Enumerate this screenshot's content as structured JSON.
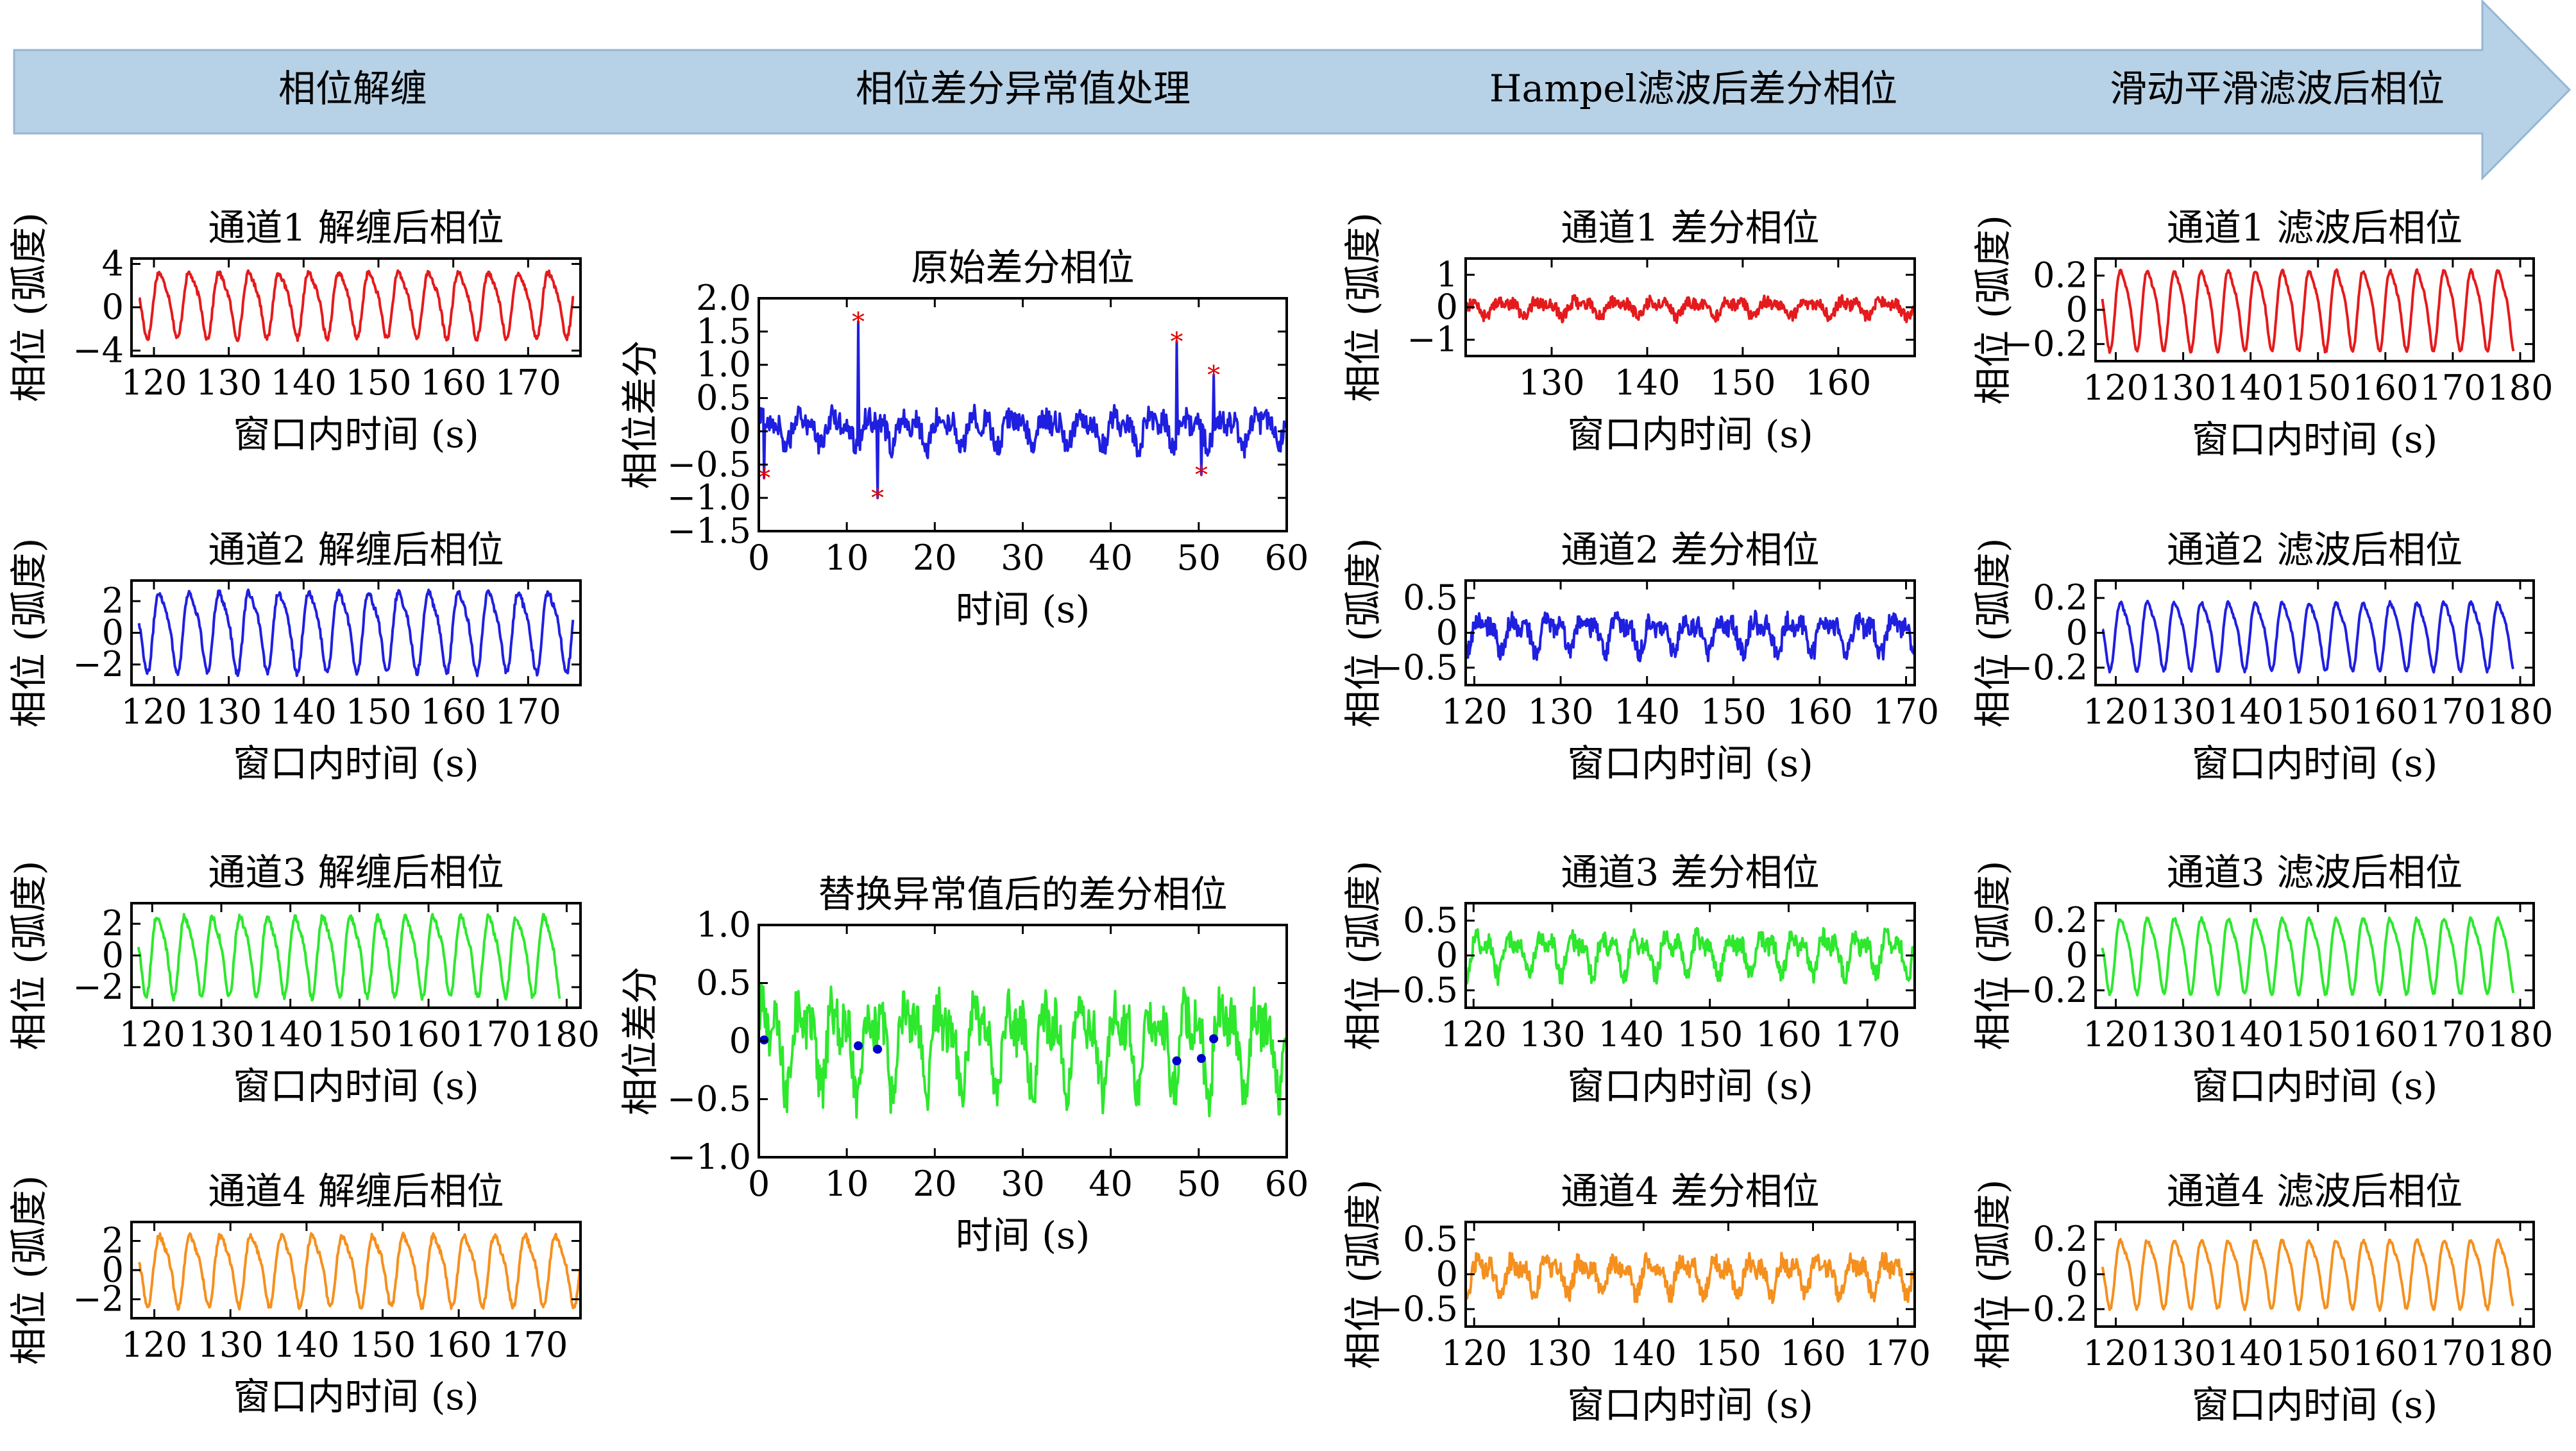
{
  "pipeline_stages": [
    "相位解缠",
    "相位差分异常值处理",
    "Hampel滤波后差分相位",
    "滑动平滑滤波后相位"
  ],
  "colors": {
    "arrow_fill": "#b7d1e6",
    "arrow_stroke": "#94b6d3",
    "red": "#e41a1c",
    "blue": "#1f1fe0",
    "green": "#2de82d",
    "orange": "#f5901e",
    "marker_red": "#e00000",
    "marker_blue": "#0000cc"
  },
  "chart_data": [
    {
      "id": "unwrap-1",
      "type": "line",
      "title": "通道1 解缠后相位",
      "xlabel": "窗口内时间 (s)",
      "ylabel": "相位 (弧度)",
      "xlim": [
        117,
        177
      ],
      "ylim": [
        -4.5,
        4.5
      ],
      "xticks": [
        120,
        130,
        140,
        150,
        160,
        170
      ],
      "yticks": [
        -4,
        0,
        4
      ],
      "color": "red",
      "signal": {
        "kind": "sine",
        "amp": 3.1,
        "period": 4.0,
        "offset": 0.5,
        "noise": 0.25,
        "start": 118,
        "end": 176
      }
    },
    {
      "id": "unwrap-2",
      "type": "line",
      "title": "通道2 解缠后相位",
      "xlabel": "窗口内时间 (s)",
      "ylabel": "相位 (弧度)",
      "xlim": [
        117,
        177
      ],
      "ylim": [
        -3.3,
        3.3
      ],
      "xticks": [
        120,
        130,
        140,
        150,
        160,
        170
      ],
      "yticks": [
        -2,
        0,
        2
      ],
      "color": "blue",
      "signal": {
        "kind": "sine",
        "amp": 2.6,
        "period": 4.0,
        "offset": 0.3,
        "noise": 0.2,
        "start": 118,
        "end": 176
      }
    },
    {
      "id": "unwrap-3",
      "type": "line",
      "title": "通道3 解缠后相位",
      "xlabel": "窗口内时间 (s)",
      "ylabel": "相位 (弧度)",
      "xlim": [
        117,
        182
      ],
      "ylim": [
        -3.3,
        3.3
      ],
      "xticks": [
        120,
        130,
        140,
        150,
        160,
        170,
        180
      ],
      "yticks": [
        -2,
        0,
        2
      ],
      "color": "green",
      "signal": {
        "kind": "sine",
        "amp": 2.6,
        "period": 4.0,
        "offset": 0.2,
        "noise": 0.2,
        "start": 118,
        "end": 179
      }
    },
    {
      "id": "unwrap-4",
      "type": "line",
      "title": "通道4 解缠后相位",
      "xlabel": "窗口内时间 (s)",
      "ylabel": "相位 (弧度)",
      "xlim": [
        117,
        176
      ],
      "ylim": [
        -3.3,
        3.3
      ],
      "xticks": [
        120,
        130,
        140,
        150,
        160,
        170
      ],
      "yticks": [
        -2,
        0,
        2
      ],
      "color": "orange",
      "signal": {
        "kind": "sine",
        "amp": 2.5,
        "period": 4.0,
        "offset": 0.2,
        "noise": 0.2,
        "start": 118,
        "end": 176
      }
    },
    {
      "id": "diff-raw",
      "type": "line",
      "title": "原始差分相位",
      "xlabel": "时间 (s)",
      "ylabel": "相位差分",
      "xlim": [
        0,
        60
      ],
      "ylim": [
        -1.5,
        2.0
      ],
      "xticks": [
        0,
        10,
        20,
        30,
        40,
        50,
        60
      ],
      "yticks": [
        -1.5,
        -1.0,
        -0.5,
        0,
        0.5,
        1.0,
        1.5,
        2.0
      ],
      "color": "blue",
      "signal": {
        "kind": "noisy",
        "amp": 0.28,
        "period": 4.0,
        "offset": 0.05,
        "noise": 0.18,
        "start": 0,
        "end": 60,
        "spikes": [
          [
            0.6,
            -0.7
          ],
          [
            11.3,
            1.65
          ],
          [
            13.5,
            -1.0
          ],
          [
            47.5,
            1.35
          ],
          [
            50.3,
            -0.65
          ],
          [
            51.7,
            0.85
          ]
        ]
      },
      "markers": {
        "color": "marker_red",
        "shape": "star",
        "points": [
          [
            0.6,
            -0.7
          ],
          [
            11.3,
            1.65
          ],
          [
            13.5,
            -1.0
          ],
          [
            47.5,
            1.35
          ],
          [
            50.3,
            -0.65
          ],
          [
            51.7,
            0.85
          ]
        ]
      }
    },
    {
      "id": "diff-replaced",
      "type": "line",
      "title": "替换异常值后的差分相位",
      "xlabel": "时间 (s)",
      "ylabel": "相位差分",
      "xlim": [
        0,
        60
      ],
      "ylim": [
        -1.0,
        1.0
      ],
      "xticks": [
        0,
        10,
        20,
        30,
        40,
        50,
        60
      ],
      "yticks": [
        -1.0,
        -0.5,
        0,
        0.5,
        1.0
      ],
      "color": "green",
      "signal": {
        "kind": "noisy",
        "amp": 0.45,
        "period": 4.0,
        "offset": 0.0,
        "noise": 0.22,
        "start": 0,
        "end": 60
      },
      "markers": {
        "color": "marker_blue",
        "shape": "dot",
        "points": [
          [
            0.6,
            0.01
          ],
          [
            11.3,
            -0.04
          ],
          [
            13.5,
            -0.07
          ],
          [
            47.5,
            -0.17
          ],
          [
            50.3,
            -0.15
          ],
          [
            51.7,
            0.02
          ]
        ]
      }
    },
    {
      "id": "hampel-1",
      "type": "line",
      "title": "通道1 差分相位",
      "xlabel": "窗口内时间 (s)",
      "ylabel": "相位 (弧度)",
      "xlim": [
        121,
        168
      ],
      "ylim": [
        -1.5,
        1.5
      ],
      "xticks": [
        130,
        140,
        150,
        160
      ],
      "yticks": [
        -1,
        0,
        1
      ],
      "color": "red",
      "signal": {
        "kind": "noisy",
        "amp": 0.3,
        "period": 4.0,
        "offset": 0.0,
        "noise": 0.18,
        "start": 121,
        "end": 168
      }
    },
    {
      "id": "hampel-2",
      "type": "line",
      "title": "通道2 差分相位",
      "xlabel": "窗口内时间 (s)",
      "ylabel": "相位 (弧度)",
      "xlim": [
        119,
        171
      ],
      "ylim": [
        -0.75,
        0.75
      ],
      "xticks": [
        120,
        130,
        140,
        150,
        160,
        170
      ],
      "yticks": [
        -0.5,
        0,
        0.5
      ],
      "color": "blue",
      "signal": {
        "kind": "noisy",
        "amp": 0.3,
        "period": 4.0,
        "offset": 0.0,
        "noise": 0.14,
        "start": 119,
        "end": 171
      }
    },
    {
      "id": "hampel-3",
      "type": "line",
      "title": "通道3 差分相位",
      "xlabel": "窗口内时间 (s)",
      "ylabel": "相位 (弧度)",
      "xlim": [
        119,
        176
      ],
      "ylim": [
        -0.75,
        0.75
      ],
      "xticks": [
        120,
        130,
        140,
        150,
        160,
        170
      ],
      "yticks": [
        -0.5,
        0,
        0.5
      ],
      "color": "green",
      "signal": {
        "kind": "noisy",
        "amp": 0.35,
        "period": 4.0,
        "offset": 0.05,
        "noise": 0.13,
        "start": 119,
        "end": 176
      }
    },
    {
      "id": "hampel-4",
      "type": "line",
      "title": "通道4 差分相位",
      "xlabel": "窗口内时间 (s)",
      "ylabel": "相位 (弧度)",
      "xlim": [
        119,
        172
      ],
      "ylim": [
        -0.75,
        0.75
      ],
      "xticks": [
        120,
        130,
        140,
        150,
        160,
        170
      ],
      "yticks": [
        -0.5,
        0,
        0.5
      ],
      "color": "orange",
      "signal": {
        "kind": "noisy",
        "amp": 0.3,
        "period": 4.0,
        "offset": 0.0,
        "noise": 0.13,
        "start": 119,
        "end": 172
      }
    },
    {
      "id": "smooth-1",
      "type": "line",
      "title": "通道1 滤波后相位",
      "xlabel": "窗口内时间 (s)",
      "ylabel": "相位 (弧度)",
      "xlim": [
        117,
        182
      ],
      "ylim": [
        -0.3,
        0.3
      ],
      "xticks": [
        120,
        130,
        140,
        150,
        160,
        170,
        180
      ],
      "yticks": [
        -0.2,
        0,
        0.2
      ],
      "color": "red",
      "signal": {
        "kind": "sine",
        "amp": 0.24,
        "period": 4.0,
        "offset": 0.02,
        "noise": 0.01,
        "start": 118,
        "end": 179
      }
    },
    {
      "id": "smooth-2",
      "type": "line",
      "title": "通道2 滤波后相位",
      "xlabel": "窗口内时间 (s)",
      "ylabel": "相位 (弧度)",
      "xlim": [
        117,
        182
      ],
      "ylim": [
        -0.3,
        0.3
      ],
      "xticks": [
        120,
        130,
        140,
        150,
        160,
        170,
        180
      ],
      "yticks": [
        -0.2,
        0,
        0.2
      ],
      "color": "blue",
      "signal": {
        "kind": "sine",
        "amp": 0.2,
        "period": 4.0,
        "offset": 0.0,
        "noise": 0.01,
        "start": 118,
        "end": 179
      }
    },
    {
      "id": "smooth-3",
      "type": "line",
      "title": "通道3 滤波后相位",
      "xlabel": "窗口内时间 (s)",
      "ylabel": "相位 (弧度)",
      "xlim": [
        117,
        182
      ],
      "ylim": [
        -0.3,
        0.3
      ],
      "xticks": [
        120,
        130,
        140,
        150,
        160,
        170,
        180
      ],
      "yticks": [
        -0.2,
        0,
        0.2
      ],
      "color": "green",
      "signal": {
        "kind": "sine",
        "amp": 0.22,
        "period": 4.0,
        "offset": 0.02,
        "noise": 0.01,
        "start": 118,
        "end": 179
      }
    },
    {
      "id": "smooth-4",
      "type": "line",
      "title": "通道4 滤波后相位",
      "xlabel": "窗口内时间 (s)",
      "ylabel": "相位 (弧度)",
      "xlim": [
        117,
        182
      ],
      "ylim": [
        -0.3,
        0.3
      ],
      "xticks": [
        120,
        130,
        140,
        150,
        160,
        170,
        180
      ],
      "yticks": [
        -0.2,
        0,
        0.2
      ],
      "color": "orange",
      "signal": {
        "kind": "sine",
        "amp": 0.2,
        "period": 4.0,
        "offset": 0.02,
        "noise": 0.01,
        "start": 118,
        "end": 179
      }
    }
  ]
}
